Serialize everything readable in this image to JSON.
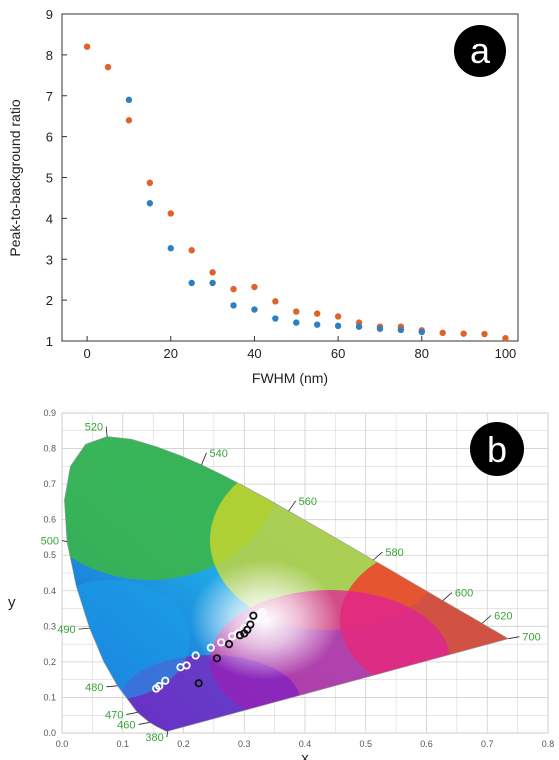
{
  "chart_data": [
    {
      "panel_label": "a",
      "type": "scatter",
      "xlabel": "FWHM (nm)",
      "ylabel": "Peak-to-background ratio",
      "xlim": [
        -6,
        103
      ],
      "ylim": [
        1,
        9
      ],
      "x_ticks": [
        "0",
        "20",
        "40",
        "60",
        "80",
        "100"
      ],
      "y_ticks": [
        "1",
        "2",
        "3",
        "4",
        "5",
        "6",
        "7",
        "8",
        "9"
      ],
      "grid": false,
      "series": [
        {
          "color": "#e0622b",
          "points": [
            [
              0,
              8.2
            ],
            [
              5,
              7.7
            ],
            [
              10,
              6.4
            ],
            [
              15,
              4.87
            ],
            [
              20,
              4.12
            ],
            [
              25,
              3.22
            ],
            [
              30,
              2.68
            ],
            [
              35,
              2.27
            ],
            [
              40,
              2.32
            ],
            [
              45,
              1.97
            ],
            [
              50,
              1.72
            ],
            [
              55,
              1.67
            ],
            [
              60,
              1.6
            ],
            [
              65,
              1.45
            ],
            [
              70,
              1.35
            ],
            [
              75,
              1.35
            ],
            [
              80,
              1.26
            ],
            [
              85,
              1.2
            ],
            [
              90,
              1.18
            ],
            [
              95,
              1.17
            ],
            [
              100,
              1.07
            ]
          ]
        },
        {
          "color": "#2e7ec0",
          "points": [
            [
              10,
              6.9
            ],
            [
              15,
              4.37
            ],
            [
              20,
              3.27
            ],
            [
              25,
              2.42
            ],
            [
              30,
              2.42
            ],
            [
              35,
              1.87
            ],
            [
              40,
              1.77
            ],
            [
              45,
              1.55
            ],
            [
              50,
              1.45
            ],
            [
              55,
              1.4
            ],
            [
              60,
              1.37
            ],
            [
              65,
              1.35
            ],
            [
              70,
              1.3
            ],
            [
              75,
              1.27
            ],
            [
              80,
              1.22
            ]
          ]
        }
      ]
    },
    {
      "panel_label": "b",
      "type": "scatter",
      "xlabel": "x",
      "ylabel": "y",
      "xlim": [
        0,
        0.8
      ],
      "ylim": [
        0,
        0.9
      ],
      "x_ticks": [
        "0.0",
        "0.1",
        "0.2",
        "0.3",
        "0.4",
        "0.5",
        "0.6",
        "0.7",
        "0.8"
      ],
      "y_ticks": [
        "0.0",
        "0.1",
        "0.2",
        "0.3",
        "0.4",
        "0.5",
        "0.6",
        "0.7",
        "0.8",
        "0.9"
      ],
      "grid": true,
      "wavelength_labels": [
        "380",
        "460",
        "470",
        "480",
        "490",
        "500",
        "520",
        "540",
        "560",
        "580",
        "600",
        "620",
        "700"
      ],
      "series": [
        {
          "marker": "open-white",
          "points": [
            [
              0.155,
              0.125
            ],
            [
              0.16,
              0.132
            ],
            [
              0.17,
              0.147
            ],
            [
              0.195,
              0.185
            ],
            [
              0.205,
              0.19
            ],
            [
              0.22,
              0.218
            ],
            [
              0.245,
              0.24
            ],
            [
              0.262,
              0.255
            ],
            [
              0.28,
              0.272
            ],
            [
              0.29,
              0.28
            ],
            [
              0.3,
              0.295
            ],
            [
              0.31,
              0.315
            ],
            [
              0.315,
              0.32
            ],
            [
              0.322,
              0.328
            ],
            [
              0.326,
              0.335
            ],
            [
              0.33,
              0.34
            ]
          ]
        },
        {
          "marker": "open-black",
          "points": [
            [
              0.225,
              0.14
            ],
            [
              0.255,
              0.21
            ],
            [
              0.275,
              0.25
            ],
            [
              0.293,
              0.275
            ],
            [
              0.3,
              0.28
            ],
            [
              0.305,
              0.29
            ],
            [
              0.31,
              0.305
            ],
            [
              0.315,
              0.33
            ]
          ]
        }
      ]
    }
  ]
}
